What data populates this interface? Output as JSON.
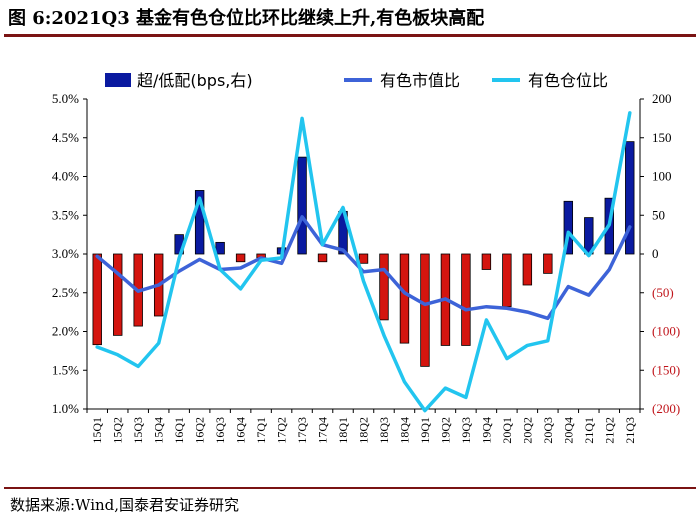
{
  "title": "图 6:2021Q3 基金有色仓位比环比继续上升,有色板块高配",
  "source": "数据来源:Wind,国泰君安证券研究",
  "colors": {
    "bar_positive": "#0a1aa0",
    "bar_negative": "#d4150f",
    "market_line": "#3d63d8",
    "position_line": "#22c5ef",
    "title_rule": "#7a1313",
    "right_axis_negative": "#c0141a"
  },
  "chart_data": {
    "type": "bar+line",
    "categories": [
      "15Q1",
      "15Q2",
      "15Q3",
      "15Q4",
      "16Q1",
      "16Q2",
      "16Q3",
      "16Q4",
      "17Q1",
      "17Q2",
      "17Q3",
      "17Q4",
      "18Q1",
      "18Q2",
      "18Q3",
      "18Q4",
      "19Q1",
      "19Q2",
      "19Q3",
      "19Q4",
      "20Q1",
      "20Q2",
      "20Q3",
      "20Q4",
      "21Q1",
      "21Q2",
      "21Q3"
    ],
    "left_axis": {
      "min": 1.0,
      "max": 5.0,
      "step": 0.5,
      "tick_labels": [
        "1.0%",
        "1.5%",
        "2.0%",
        "2.5%",
        "3.0%",
        "3.5%",
        "4.0%",
        "4.5%",
        "5.0%"
      ]
    },
    "right_axis": {
      "min": -200,
      "max": 200,
      "step": 50,
      "tick_labels": [
        "(200)",
        "(150)",
        "(100)",
        "(50)",
        "0",
        "50",
        "100",
        "150",
        "200"
      ]
    },
    "legend": [
      {
        "type": "bar",
        "label": "超/低配(bps,右)"
      },
      {
        "type": "line",
        "label": "有色市值比"
      },
      {
        "type": "line",
        "label": "有色仓位比"
      }
    ],
    "series": [
      {
        "name": "超/低配(bps,右)",
        "axis": "right",
        "type": "bar",
        "values": [
          -117,
          -105,
          -93,
          -80,
          25,
          82,
          15,
          -10,
          -5,
          8,
          125,
          -10,
          55,
          -12,
          -85,
          -115,
          -145,
          -118,
          -118,
          -20,
          -68,
          -40,
          -25,
          68,
          47,
          72,
          145
        ]
      },
      {
        "name": "有色市值比",
        "axis": "left",
        "type": "line",
        "values": [
          2.97,
          2.75,
          2.52,
          2.6,
          2.78,
          2.93,
          2.8,
          2.82,
          2.95,
          2.88,
          3.48,
          3.12,
          3.05,
          2.77,
          2.8,
          2.5,
          2.35,
          2.42,
          2.28,
          2.32,
          2.3,
          2.25,
          2.17,
          2.58,
          2.47,
          2.8,
          3.35
        ]
      },
      {
        "name": "有色仓位比",
        "axis": "left",
        "type": "line",
        "values": [
          1.8,
          1.7,
          1.55,
          1.85,
          2.95,
          3.72,
          2.8,
          2.55,
          2.92,
          2.95,
          4.75,
          3.12,
          3.6,
          2.65,
          1.95,
          1.35,
          0.98,
          1.27,
          1.15,
          2.15,
          1.65,
          1.82,
          1.88,
          3.28,
          2.98,
          3.38,
          4.82
        ]
      }
    ]
  }
}
